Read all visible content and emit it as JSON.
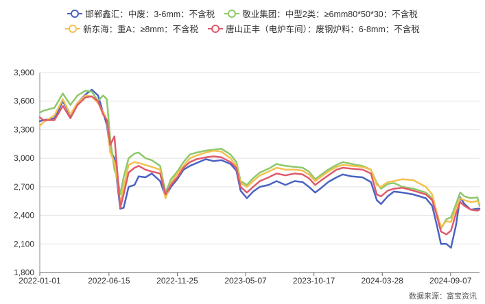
{
  "chart_data": {
    "type": "line",
    "ylim": [
      1800,
      3900
    ],
    "yticks": [
      1800,
      2100,
      2400,
      2700,
      3000,
      3300,
      3600,
      3900
    ],
    "ytick_labels": [
      "1,800",
      "2,100",
      "2,400",
      "2,700",
      "3,000",
      "3,300",
      "3,600",
      "3,900"
    ],
    "xlim": [
      "2022-01-01",
      "2024-11-15"
    ],
    "xtick_labels": [
      "2022-01-01",
      "2022-06-15",
      "2022-11-25",
      "2023-05-07",
      "2023-10-17",
      "2024-03-28",
      "2024-09-07"
    ],
    "grid": "horizontal",
    "legend_position": "top",
    "series": [
      {
        "name": "邯郸鑫汇：中废：3-6mm：不含税",
        "color": "#4a62c2",
        "points": [
          [
            "2022-01-01",
            3390
          ],
          [
            "2022-01-10",
            3400
          ],
          [
            "2022-02-05",
            3420
          ],
          [
            "2022-02-25",
            3600
          ],
          [
            "2022-03-15",
            3450
          ],
          [
            "2022-04-01",
            3580
          ],
          [
            "2022-04-20",
            3670
          ],
          [
            "2022-05-05",
            3720
          ],
          [
            "2022-05-20",
            3660
          ],
          [
            "2022-06-01",
            3480
          ],
          [
            "2022-06-10",
            3350
          ],
          [
            "2022-06-18",
            3080
          ],
          [
            "2022-06-28",
            3000
          ],
          [
            "2022-07-06",
            2690
          ],
          [
            "2022-07-12",
            2470
          ],
          [
            "2022-07-20",
            2480
          ],
          [
            "2022-08-01",
            2700
          ],
          [
            "2022-08-15",
            2720
          ],
          [
            "2022-08-25",
            2810
          ],
          [
            "2022-09-10",
            2800
          ],
          [
            "2022-09-25",
            2840
          ],
          [
            "2022-10-15",
            2760
          ],
          [
            "2022-10-28",
            2600
          ],
          [
            "2022-11-10",
            2700
          ],
          [
            "2022-11-25",
            2780
          ],
          [
            "2022-12-10",
            2880
          ],
          [
            "2022-12-25",
            2920
          ],
          [
            "2023-01-10",
            2950
          ],
          [
            "2023-02-01",
            2990
          ],
          [
            "2023-02-20",
            2970
          ],
          [
            "2023-03-10",
            2980
          ],
          [
            "2023-04-01",
            2940
          ],
          [
            "2023-04-15",
            2870
          ],
          [
            "2023-04-25",
            2660
          ],
          [
            "2023-05-10",
            2580
          ],
          [
            "2023-05-25",
            2650
          ],
          [
            "2023-06-10",
            2700
          ],
          [
            "2023-07-01",
            2720
          ],
          [
            "2023-07-20",
            2760
          ],
          [
            "2023-08-10",
            2720
          ],
          [
            "2023-09-01",
            2760
          ],
          [
            "2023-09-20",
            2750
          ],
          [
            "2023-10-05",
            2700
          ],
          [
            "2023-10-20",
            2640
          ],
          [
            "2023-11-01",
            2680
          ],
          [
            "2023-11-20",
            2750
          ],
          [
            "2023-12-10",
            2800
          ],
          [
            "2023-12-25",
            2830
          ],
          [
            "2024-01-15",
            2810
          ],
          [
            "2024-02-10",
            2800
          ],
          [
            "2024-03-01",
            2750
          ],
          [
            "2024-03-15",
            2560
          ],
          [
            "2024-03-25",
            2520
          ],
          [
            "2024-04-10",
            2600
          ],
          [
            "2024-04-25",
            2650
          ],
          [
            "2024-05-15",
            2640
          ],
          [
            "2024-06-10",
            2620
          ],
          [
            "2024-07-10",
            2580
          ],
          [
            "2024-07-25",
            2500
          ],
          [
            "2024-08-05",
            2300
          ],
          [
            "2024-08-15",
            2100
          ],
          [
            "2024-08-28",
            2100
          ],
          [
            "2024-09-08",
            2060
          ],
          [
            "2024-09-20",
            2300
          ],
          [
            "2024-09-30",
            2590
          ],
          [
            "2024-10-10",
            2520
          ],
          [
            "2024-10-25",
            2460
          ],
          [
            "2024-11-10",
            2470
          ],
          [
            "2024-11-15",
            2470
          ]
        ]
      },
      {
        "name": "敬业集团：中型2类：≥6mm80*50*30：不含税",
        "color": "#8dc86b",
        "points": [
          [
            "2022-01-01",
            3480
          ],
          [
            "2022-01-10",
            3500
          ],
          [
            "2022-02-05",
            3530
          ],
          [
            "2022-02-25",
            3680
          ],
          [
            "2022-03-15",
            3560
          ],
          [
            "2022-04-01",
            3660
          ],
          [
            "2022-04-20",
            3710
          ],
          [
            "2022-05-05",
            3700
          ],
          [
            "2022-05-20",
            3600
          ],
          [
            "2022-06-01",
            3660
          ],
          [
            "2022-06-10",
            3620
          ],
          [
            "2022-06-18",
            3200
          ],
          [
            "2022-06-28",
            2880
          ],
          [
            "2022-07-06",
            2780
          ],
          [
            "2022-07-12",
            2620
          ],
          [
            "2022-07-20",
            2800
          ],
          [
            "2022-08-01",
            3000
          ],
          [
            "2022-08-15",
            3050
          ],
          [
            "2022-08-25",
            3060
          ],
          [
            "2022-09-10",
            3000
          ],
          [
            "2022-09-25",
            2980
          ],
          [
            "2022-10-15",
            2920
          ],
          [
            "2022-10-28",
            2640
          ],
          [
            "2022-11-10",
            2780
          ],
          [
            "2022-11-25",
            2860
          ],
          [
            "2022-12-10",
            2960
          ],
          [
            "2022-12-25",
            3040
          ],
          [
            "2023-01-10",
            3060
          ],
          [
            "2023-02-01",
            3080
          ],
          [
            "2023-02-20",
            3090
          ],
          [
            "2023-03-10",
            3100
          ],
          [
            "2023-04-01",
            3040
          ],
          [
            "2023-04-15",
            2960
          ],
          [
            "2023-04-25",
            2760
          ],
          [
            "2023-05-10",
            2720
          ],
          [
            "2023-05-25",
            2790
          ],
          [
            "2023-06-10",
            2850
          ],
          [
            "2023-07-01",
            2890
          ],
          [
            "2023-07-20",
            2940
          ],
          [
            "2023-08-10",
            2920
          ],
          [
            "2023-09-01",
            2910
          ],
          [
            "2023-09-20",
            2900
          ],
          [
            "2023-10-05",
            2860
          ],
          [
            "2023-10-20",
            2780
          ],
          [
            "2023-11-01",
            2820
          ],
          [
            "2023-11-20",
            2880
          ],
          [
            "2023-12-10",
            2930
          ],
          [
            "2023-12-25",
            2960
          ],
          [
            "2024-01-15",
            2940
          ],
          [
            "2024-02-10",
            2920
          ],
          [
            "2024-03-01",
            2880
          ],
          [
            "2024-03-15",
            2740
          ],
          [
            "2024-03-25",
            2680
          ],
          [
            "2024-04-10",
            2730
          ],
          [
            "2024-04-25",
            2740
          ],
          [
            "2024-05-15",
            2700
          ],
          [
            "2024-06-10",
            2680
          ],
          [
            "2024-07-10",
            2640
          ],
          [
            "2024-07-25",
            2580
          ],
          [
            "2024-08-05",
            2420
          ],
          [
            "2024-08-15",
            2260
          ],
          [
            "2024-08-28",
            2360
          ],
          [
            "2024-09-08",
            2380
          ],
          [
            "2024-09-20",
            2520
          ],
          [
            "2024-09-30",
            2640
          ],
          [
            "2024-10-10",
            2600
          ],
          [
            "2024-10-25",
            2580
          ],
          [
            "2024-11-10",
            2590
          ],
          [
            "2024-11-15",
            2500
          ]
        ]
      },
      {
        "name": "新东海：重A：≥8mm：不含税",
        "color": "#f2c14e",
        "points": [
          [
            "2022-01-01",
            3340
          ],
          [
            "2022-01-10",
            3380
          ],
          [
            "2022-02-05",
            3450
          ],
          [
            "2022-02-25",
            3620
          ],
          [
            "2022-03-15",
            3460
          ],
          [
            "2022-04-01",
            3580
          ],
          [
            "2022-04-20",
            3660
          ],
          [
            "2022-05-05",
            3650
          ],
          [
            "2022-05-20",
            3580
          ],
          [
            "2022-06-01",
            3490
          ],
          [
            "2022-06-10",
            3400
          ],
          [
            "2022-06-18",
            3060
          ],
          [
            "2022-06-28",
            2960
          ],
          [
            "2022-07-06",
            2740
          ],
          [
            "2022-07-12",
            2520
          ],
          [
            "2022-07-20",
            2700
          ],
          [
            "2022-08-01",
            2930
          ],
          [
            "2022-08-15",
            2960
          ],
          [
            "2022-08-25",
            2950
          ],
          [
            "2022-09-10",
            2930
          ],
          [
            "2022-09-25",
            2910
          ],
          [
            "2022-10-15",
            2880
          ],
          [
            "2022-10-28",
            2580
          ],
          [
            "2022-11-10",
            2740
          ],
          [
            "2022-11-25",
            2840
          ],
          [
            "2022-12-10",
            2920
          ],
          [
            "2022-12-25",
            3000
          ],
          [
            "2023-01-10",
            3030
          ],
          [
            "2023-02-01",
            3060
          ],
          [
            "2023-02-20",
            3080
          ],
          [
            "2023-03-10",
            3070
          ],
          [
            "2023-04-01",
            3000
          ],
          [
            "2023-04-15",
            2920
          ],
          [
            "2023-04-25",
            2740
          ],
          [
            "2023-05-10",
            2700
          ],
          [
            "2023-05-25",
            2760
          ],
          [
            "2023-06-10",
            2820
          ],
          [
            "2023-07-01",
            2860
          ],
          [
            "2023-07-20",
            2900
          ],
          [
            "2023-08-10",
            2880
          ],
          [
            "2023-09-01",
            2880
          ],
          [
            "2023-09-20",
            2870
          ],
          [
            "2023-10-05",
            2830
          ],
          [
            "2023-10-20",
            2760
          ],
          [
            "2023-11-01",
            2800
          ],
          [
            "2023-11-20",
            2860
          ],
          [
            "2023-12-10",
            2910
          ],
          [
            "2023-12-25",
            2930
          ],
          [
            "2024-01-15",
            2920
          ],
          [
            "2024-02-10",
            2910
          ],
          [
            "2024-03-01",
            2880
          ],
          [
            "2024-03-15",
            2720
          ],
          [
            "2024-03-25",
            2700
          ],
          [
            "2024-04-10",
            2750
          ],
          [
            "2024-04-25",
            2760
          ],
          [
            "2024-05-15",
            2780
          ],
          [
            "2024-06-10",
            2770
          ],
          [
            "2024-07-10",
            2700
          ],
          [
            "2024-07-25",
            2620
          ],
          [
            "2024-08-05",
            2430
          ],
          [
            "2024-08-15",
            2280
          ],
          [
            "2024-08-28",
            2340
          ],
          [
            "2024-09-08",
            2330
          ],
          [
            "2024-09-20",
            2480
          ],
          [
            "2024-09-30",
            2580
          ],
          [
            "2024-10-10",
            2560
          ],
          [
            "2024-10-25",
            2540
          ],
          [
            "2024-11-10",
            2550
          ],
          [
            "2024-11-15",
            2520
          ]
        ]
      },
      {
        "name": "唐山正丰（电炉车间）：废钢炉料：6-8mm：不含税",
        "color": "#e05a6a",
        "points": [
          [
            "2022-01-01",
            3430
          ],
          [
            "2022-01-10",
            3400
          ],
          [
            "2022-02-05",
            3400
          ],
          [
            "2022-02-25",
            3550
          ],
          [
            "2022-03-15",
            3420
          ],
          [
            "2022-04-01",
            3560
          ],
          [
            "2022-04-20",
            3640
          ],
          [
            "2022-05-05",
            3650
          ],
          [
            "2022-05-20",
            3600
          ],
          [
            "2022-06-01",
            3460
          ],
          [
            "2022-06-10",
            3400
          ],
          [
            "2022-06-18",
            3140
          ],
          [
            "2022-06-28",
            3230
          ],
          [
            "2022-07-06",
            2800
          ],
          [
            "2022-07-12",
            2480
          ],
          [
            "2022-07-20",
            2620
          ],
          [
            "2022-08-01",
            2850
          ],
          [
            "2022-08-15",
            2900
          ],
          [
            "2022-08-25",
            2920
          ],
          [
            "2022-09-10",
            2880
          ],
          [
            "2022-09-25",
            2860
          ],
          [
            "2022-10-15",
            2840
          ],
          [
            "2022-10-28",
            2620
          ],
          [
            "2022-11-10",
            2720
          ],
          [
            "2022-11-25",
            2800
          ],
          [
            "2022-12-10",
            2900
          ],
          [
            "2022-12-25",
            2960
          ],
          [
            "2023-01-10",
            2990
          ],
          [
            "2023-02-01",
            3010
          ],
          [
            "2023-02-20",
            3020
          ],
          [
            "2023-03-10",
            3010
          ],
          [
            "2023-04-01",
            2960
          ],
          [
            "2023-04-15",
            2900
          ],
          [
            "2023-04-25",
            2700
          ],
          [
            "2023-05-10",
            2640
          ],
          [
            "2023-05-25",
            2700
          ],
          [
            "2023-06-10",
            2760
          ],
          [
            "2023-07-01",
            2800
          ],
          [
            "2023-07-20",
            2840
          ],
          [
            "2023-08-10",
            2820
          ],
          [
            "2023-09-01",
            2840
          ],
          [
            "2023-09-20",
            2830
          ],
          [
            "2023-10-05",
            2790
          ],
          [
            "2023-10-20",
            2720
          ],
          [
            "2023-11-01",
            2760
          ],
          [
            "2023-11-20",
            2820
          ],
          [
            "2023-12-10",
            2880
          ],
          [
            "2023-12-25",
            2900
          ],
          [
            "2024-01-15",
            2890
          ],
          [
            "2024-02-10",
            2880
          ],
          [
            "2024-03-01",
            2840
          ],
          [
            "2024-03-15",
            2620
          ],
          [
            "2024-03-25",
            2600
          ],
          [
            "2024-04-10",
            2660
          ],
          [
            "2024-04-25",
            2680
          ],
          [
            "2024-05-15",
            2690
          ],
          [
            "2024-06-10",
            2660
          ],
          [
            "2024-07-10",
            2620
          ],
          [
            "2024-07-25",
            2560
          ],
          [
            "2024-08-05",
            2400
          ],
          [
            "2024-08-15",
            2230
          ],
          [
            "2024-08-28",
            2200
          ],
          [
            "2024-09-08",
            2240
          ],
          [
            "2024-09-20",
            2420
          ],
          [
            "2024-09-30",
            2540
          ],
          [
            "2024-10-10",
            2500
          ],
          [
            "2024-10-25",
            2460
          ],
          [
            "2024-11-10",
            2450
          ],
          [
            "2024-11-15",
            2460
          ]
        ]
      }
    ]
  },
  "source_label": "数据来源：富宝资讯"
}
